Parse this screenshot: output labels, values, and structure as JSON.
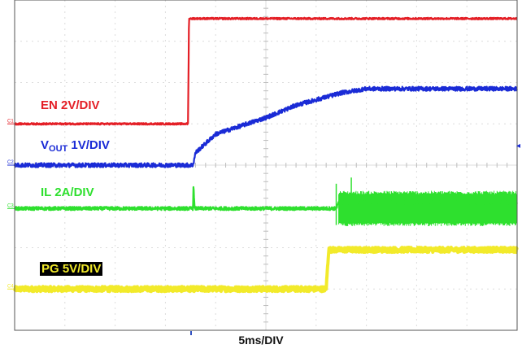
{
  "chart_data": {
    "type": "line",
    "title": "",
    "xlabel": "5ms/DIV",
    "x_divisions": 10,
    "y_divisions": 8,
    "grid": true,
    "series": [
      {
        "name": "EN 2V/DIV",
        "label_main": "EN 2V/DIV",
        "marker": "C1",
        "color": "#e41f26",
        "points": [
          [
            0,
            5.0
          ],
          [
            3.45,
            5.0
          ],
          [
            3.47,
            7.55
          ],
          [
            10,
            7.55
          ]
        ],
        "noise": 0.02
      },
      {
        "name": "VOUT 1V/DIV",
        "label_main": "V",
        "label_sub": "OUT",
        "label_rest": " 1V/DIV",
        "marker": "C2",
        "color": "#1a2bd6",
        "points": [
          [
            0,
            4.0
          ],
          [
            3.55,
            4.0
          ],
          [
            3.6,
            4.3
          ],
          [
            4.0,
            4.75
          ],
          [
            5.0,
            5.15
          ],
          [
            5.6,
            5.45
          ],
          [
            6.5,
            5.75
          ],
          [
            7.0,
            5.85
          ],
          [
            10,
            5.85
          ]
        ],
        "noise": 0.05
      },
      {
        "name": "IL 2A/DIV",
        "label_main": "IL 2A/DIV",
        "marker": "C3",
        "color": "#2ee02e",
        "points": [
          [
            0,
            2.95
          ],
          [
            3.55,
            2.95
          ],
          [
            3.56,
            3.55
          ],
          [
            3.58,
            2.95
          ],
          [
            6.4,
            2.95
          ],
          [
            6.45,
            3.1
          ],
          [
            10,
            3.1
          ]
        ],
        "noise": 0.04,
        "band": {
          "from": 6.45,
          "to": 10,
          "low": 2.6,
          "high": 3.3
        },
        "spikes": [
          6.4,
          6.7
        ]
      },
      {
        "name": "PG 5V/DIV",
        "label_main": "PG 5V/DIV",
        "marker": "C4",
        "color": "#f2ea2a",
        "points": [
          [
            0,
            1.0
          ],
          [
            6.2,
            1.0
          ],
          [
            6.25,
            1.95
          ],
          [
            10,
            1.95
          ]
        ],
        "noise": 0.06,
        "thick": 4
      }
    ]
  }
}
